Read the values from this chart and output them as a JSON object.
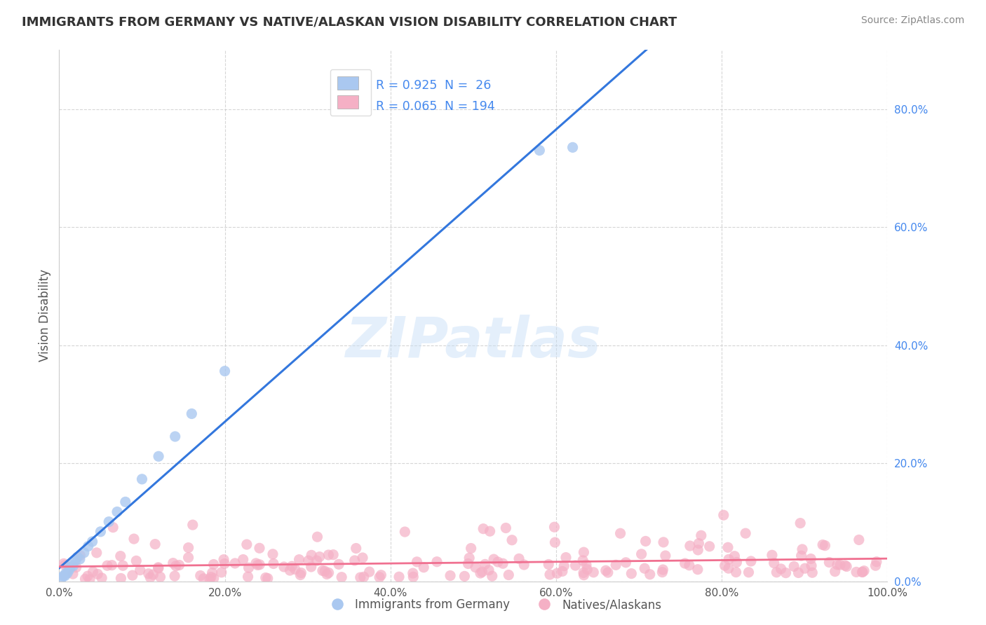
{
  "title": "IMMIGRANTS FROM GERMANY VS NATIVE/ALASKAN VISION DISABILITY CORRELATION CHART",
  "source": "Source: ZipAtlas.com",
  "ylabel": "Vision Disability",
  "watermark": "ZIPatlas",
  "legend_label1": "Immigrants from Germany",
  "legend_label2": "Natives/Alaskans",
  "R1": "0.925",
  "N1": "26",
  "R2": "0.065",
  "N2": "194",
  "color1": "#aac8f0",
  "color2": "#f5b0c5",
  "trendline1_color": "#3377dd",
  "trendline2_color": "#f07090",
  "background_color": "#ffffff",
  "grid_color": "#cccccc",
  "xlim": [
    0,
    100
  ],
  "ylim": [
    0,
    90
  ],
  "xticks": [
    0,
    20,
    40,
    60,
    80,
    100
  ],
  "yticks": [
    0,
    20,
    40,
    60,
    80
  ],
  "xticklabels": [
    "0.0%",
    "20.0%",
    "40.0%",
    "60.0%",
    "80.0%",
    "100.0%"
  ],
  "yticklabels": [
    "0.0%",
    "20.0%",
    "40.0%",
    "60.0%",
    "80.0%"
  ],
  "title_color": "#333333",
  "ylabel_color": "#555555",
  "ytick_color": "#4488ee",
  "xtick_color": "#555555",
  "source_color": "#888888"
}
